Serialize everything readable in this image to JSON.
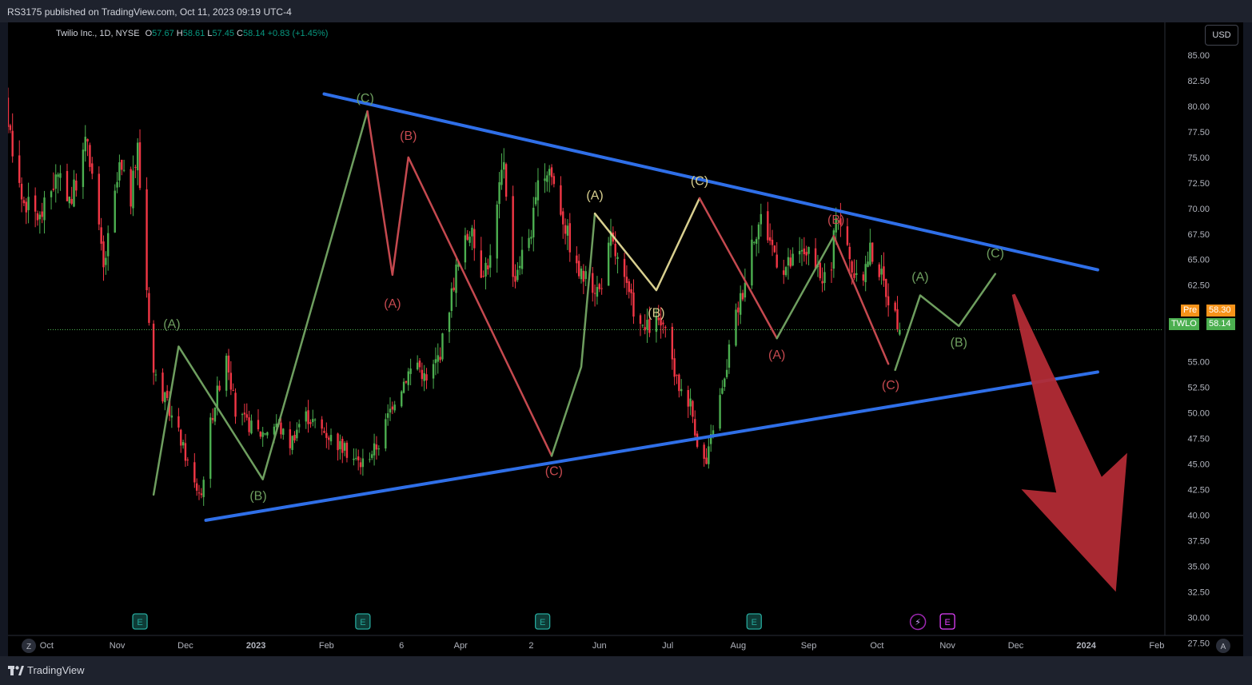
{
  "header": {
    "publisher_text": "RS3175 published on TradingView.com, Oct 11, 2023 09:19 UTC-4"
  },
  "legend": {
    "symbol": "Twilio Inc., 1D, NYSE",
    "open_label": "O",
    "open": "57.67",
    "high_label": "H",
    "high": "58.61",
    "low_label": "L",
    "low": "57.45",
    "close_label": "C",
    "close": "58.14",
    "change": "+0.83 (+1.45%)"
  },
  "currency_button": "USD",
  "price_tags": {
    "pre_label": "Pre",
    "pre_value": "58.30",
    "ticker_label": "TWLO",
    "ticker_value": "58.14"
  },
  "bottom": {
    "left_button": "Z",
    "right_button": "A",
    "brand": "TradingView"
  },
  "colors": {
    "up": "#4caf50",
    "down": "#f23645",
    "wave_green": "#6e9e5f",
    "wave_red": "#c5494f",
    "wave_yellow": "#d8cf8f",
    "trendline": "#2f6fe8",
    "arrow": "#b22b35",
    "pre_tag": "#f7931a",
    "ticker_tag": "#4caf50"
  },
  "chart_data": {
    "type": "candlestick",
    "title": "Twilio Inc., 1D, NYSE",
    "y_axis": {
      "ticks": [
        "85.00",
        "82.50",
        "80.00",
        "77.50",
        "75.00",
        "72.50",
        "70.00",
        "67.50",
        "65.00",
        "62.50",
        "55.00",
        "52.50",
        "50.00",
        "47.50",
        "45.00",
        "42.50",
        "40.00",
        "37.50",
        "35.00",
        "32.50",
        "30.00",
        "27.50"
      ],
      "range": [
        26.2,
        88.2
      ]
    },
    "x_axis": {
      "ticks": [
        "Oct",
        "Nov",
        "Dec",
        "2023",
        "Feb",
        "6",
        "Apr",
        "2",
        "Jun",
        "Jul",
        "Aug",
        "Sep",
        "Oct",
        "Nov",
        "Dec",
        "2024",
        "Feb"
      ],
      "range": [
        "2022-09-14",
        "2024-03-10"
      ]
    },
    "last_price": 58.14,
    "price_anchors": [
      [
        "2022-09-06",
        75
      ],
      [
        "2022-09-13",
        80
      ],
      [
        "2022-09-20",
        71
      ],
      [
        "2022-09-28",
        69
      ],
      [
        "2022-10-05",
        73
      ],
      [
        "2022-10-12",
        71
      ],
      [
        "2022-10-19",
        77
      ],
      [
        "2022-10-26",
        64
      ],
      [
        "2022-11-02",
        74
      ],
      [
        "2022-11-07",
        71
      ],
      [
        "2022-11-10",
        76
      ],
      [
        "2022-11-13",
        65
      ],
      [
        "2022-11-17",
        54
      ],
      [
        "2022-11-28",
        48
      ],
      [
        "2022-12-05",
        43
      ],
      [
        "2022-12-08",
        42
      ],
      [
        "2022-12-11",
        48
      ],
      [
        "2022-12-15",
        52
      ],
      [
        "2022-12-19",
        56
      ],
      [
        "2022-12-23",
        50
      ],
      [
        "2022-12-28",
        49
      ],
      [
        "2023-01-03",
        48
      ],
      [
        "2023-01-10",
        49
      ],
      [
        "2023-01-16",
        47
      ],
      [
        "2023-01-22",
        50
      ],
      [
        "2023-02-06",
        47
      ],
      [
        "2023-02-16",
        45
      ],
      [
        "2023-02-24",
        47
      ],
      [
        "2023-03-02",
        51
      ],
      [
        "2023-03-09",
        54
      ],
      [
        "2023-03-13",
        55
      ],
      [
        "2023-03-17",
        53
      ],
      [
        "2023-03-23",
        56
      ],
      [
        "2023-03-30",
        64
      ],
      [
        "2023-04-05",
        68
      ],
      [
        "2023-04-10",
        64
      ],
      [
        "2023-04-14",
        65
      ],
      [
        "2023-04-20",
        75
      ],
      [
        "2023-04-24",
        63
      ],
      [
        "2023-05-02",
        68
      ],
      [
        "2023-05-06",
        73
      ],
      [
        "2023-05-10",
        74
      ],
      [
        "2023-05-15",
        70
      ],
      [
        "2023-05-22",
        64
      ],
      [
        "2023-05-26",
        63
      ],
      [
        "2023-06-01",
        62
      ],
      [
        "2023-06-06",
        67
      ],
      [
        "2023-06-13",
        62
      ],
      [
        "2023-06-20",
        58
      ],
      [
        "2023-06-27",
        59
      ],
      [
        "2023-07-01",
        57
      ],
      [
        "2023-07-05",
        53
      ],
      [
        "2023-07-11",
        51
      ],
      [
        "2023-07-15",
        46
      ],
      [
        "2023-07-18",
        45
      ],
      [
        "2023-07-22",
        50
      ],
      [
        "2023-07-26",
        53
      ],
      [
        "2023-07-29",
        58
      ],
      [
        "2023-08-03",
        62
      ],
      [
        "2023-08-07",
        67
      ],
      [
        "2023-08-11",
        69
      ],
      [
        "2023-08-15",
        67
      ],
      [
        "2023-08-20",
        64
      ],
      [
        "2023-08-26",
        65
      ],
      [
        "2023-08-31",
        66
      ],
      [
        "2023-09-06",
        63
      ],
      [
        "2023-09-11",
        64
      ],
      [
        "2023-09-13",
        70
      ],
      [
        "2023-09-16",
        68
      ],
      [
        "2023-09-19",
        65
      ],
      [
        "2023-09-23",
        62
      ],
      [
        "2023-09-28",
        66
      ],
      [
        "2023-10-02",
        64
      ],
      [
        "2023-10-08",
        60
      ],
      [
        "2023-10-12",
        58
      ],
      [
        "2023-10-16",
        60
      ],
      [
        "2023-10-20",
        62
      ],
      [
        "2023-10-24",
        63
      ],
      [
        "2023-10-30",
        64
      ],
      [
        "2023-11-03",
        65
      ],
      [
        "2023-11-08",
        63
      ],
      [
        "2023-11-13",
        67
      ],
      [
        "2023-11-16",
        67
      ],
      [
        "2023-11-20",
        64
      ],
      [
        "2023-11-25",
        61
      ],
      [
        "2023-11-30",
        58
      ],
      [
        "2023-12-04",
        57
      ],
      [
        "2023-12-09",
        55
      ],
      [
        "2023-12-13",
        56
      ],
      [
        "2023-12-16",
        58
      ]
    ],
    "annotations": {
      "trendlines": [
        {
          "name": "upper-trendline",
          "from": [
            "2023-01-31",
            81.2
          ],
          "to": [
            "2024-01-06",
            64.0
          ]
        },
        {
          "name": "lower-trendline",
          "from": [
            "2022-12-10",
            39.5
          ],
          "to": [
            "2024-01-06",
            54.0
          ]
        }
      ],
      "wave_paths": [
        {
          "name": "wave-path-green-1",
          "color": "green",
          "points": [
            [
              "2022-11-17",
              42
            ],
            [
              "2022-11-28",
              56.5
            ],
            [
              "2023-01-04",
              43.5
            ],
            [
              "2023-02-19",
              79.5
            ]
          ]
        },
        {
          "name": "wave-path-red-1",
          "color": "red",
          "points": [
            [
              "2023-02-19",
              79.5
            ],
            [
              "2023-03-02",
              63.5
            ],
            [
              "2023-03-09",
              75
            ],
            [
              "2023-05-11",
              45.8
            ]
          ]
        },
        {
          "name": "wave-path-green-2",
          "color": "green",
          "points": [
            [
              "2023-05-11",
              45.8
            ],
            [
              "2023-05-24",
              54.5
            ],
            [
              "2023-05-30",
              69.5
            ]
          ]
        },
        {
          "name": "wave-path-yellow",
          "color": "yellow",
          "points": [
            [
              "2023-05-30",
              69.5
            ],
            [
              "2023-06-26",
              62.0
            ],
            [
              "2023-07-15",
              71
            ]
          ]
        },
        {
          "name": "wave-path-red-2",
          "color": "red",
          "points": [
            [
              "2023-07-15",
              71
            ],
            [
              "2023-08-18",
              57.3
            ]
          ]
        },
        {
          "name": "wave-path-green-3",
          "color": "green",
          "points": [
            [
              "2023-08-18",
              57.3
            ],
            [
              "2023-09-12",
              67.3
            ]
          ]
        },
        {
          "name": "wave-path-red-3",
          "color": "red",
          "points": [
            [
              "2023-09-12",
              67.3
            ],
            [
              "2023-10-06",
              54.8
            ]
          ]
        },
        {
          "name": "wave-path-green-4",
          "color": "green",
          "points": [
            [
              "2023-10-09",
              54.2
            ],
            [
              "2023-10-20",
              61.5
            ],
            [
              "2023-11-06",
              58.5
            ],
            [
              "2023-11-22",
              63.6
            ]
          ]
        }
      ],
      "wave_labels": [
        {
          "text": "(A)",
          "color": "green",
          "at": [
            "2022-11-25",
            58.3
          ]
        },
        {
          "text": "(B)",
          "color": "green",
          "at": [
            "2023-01-02",
            41.5
          ]
        },
        {
          "text": "(C)",
          "color": "green",
          "at": [
            "2023-02-18",
            80.4
          ]
        },
        {
          "text": "(A)",
          "color": "red",
          "at": [
            "2023-03-02",
            60.3
          ]
        },
        {
          "text": "(B)",
          "color": "red",
          "at": [
            "2023-03-09",
            76.7
          ]
        },
        {
          "text": "(C)",
          "color": "red",
          "at": [
            "2023-05-12",
            43.9
          ]
        },
        {
          "text": "(A)",
          "color": "yellow",
          "at": [
            "2023-05-30",
            70.9
          ]
        },
        {
          "text": "(B)",
          "color": "yellow",
          "at": [
            "2023-06-26",
            59.4
          ]
        },
        {
          "text": "(C)",
          "color": "yellow",
          "at": [
            "2023-07-15",
            72.3
          ]
        },
        {
          "text": "(A)",
          "color": "red",
          "at": [
            "2023-08-18",
            55.3
          ]
        },
        {
          "text": "(B)",
          "color": "red",
          "at": [
            "2023-09-13",
            68.5
          ]
        },
        {
          "text": "(C)",
          "color": "red",
          "at": [
            "2023-10-07",
            52.3
          ]
        },
        {
          "text": "(A)",
          "color": "green",
          "at": [
            "2023-10-20",
            62.9
          ]
        },
        {
          "text": "(B)",
          "color": "green",
          "at": [
            "2023-11-06",
            56.5
          ]
        },
        {
          "text": "(C)",
          "color": "green",
          "at": [
            "2023-11-22",
            65.2
          ]
        }
      ],
      "forecast_arrow": {
        "from": [
          "2023-11-30",
          61.6
        ],
        "to": [
          "2024-01-14",
          32.5
        ],
        "color": "red"
      },
      "event_markers": [
        {
          "type": "earnings",
          "symbol": "E",
          "at": "2022-11-11"
        },
        {
          "type": "earnings",
          "symbol": "E",
          "at": "2023-02-17"
        },
        {
          "type": "earnings",
          "symbol": "E",
          "at": "2023-05-07"
        },
        {
          "type": "earnings",
          "symbol": "E",
          "at": "2023-08-08"
        },
        {
          "type": "flash",
          "symbol": "⚡",
          "at": "2023-10-19"
        },
        {
          "type": "earnings-upcoming",
          "symbol": "E",
          "at": "2023-11-01"
        }
      ]
    }
  }
}
